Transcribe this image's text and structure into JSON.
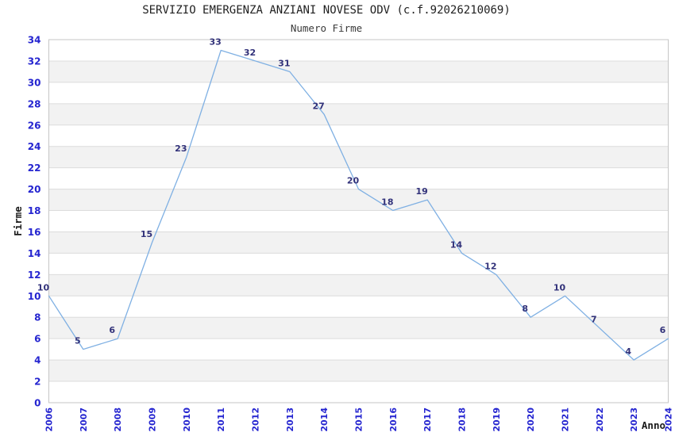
{
  "chart_data": {
    "type": "line",
    "title": "SERVIZIO EMERGENZA ANZIANI NOVESE ODV (c.f.92026210069)",
    "subtitle": "Numero Firme",
    "xlabel": "Anno",
    "ylabel": "Firme",
    "categories": [
      "2006",
      "2007",
      "2008",
      "2009",
      "2010",
      "2011",
      "2012",
      "2013",
      "2014",
      "2015",
      "2016",
      "2017",
      "2018",
      "2019",
      "2020",
      "2021",
      "2022",
      "2023",
      "2024"
    ],
    "series": [
      {
        "name": "Numero Firme",
        "values": [
          10,
          5,
          6,
          15,
          23,
          33,
          32,
          31,
          27,
          20,
          18,
          19,
          14,
          12,
          8,
          10,
          7,
          4,
          6
        ]
      }
    ],
    "ylim": [
      0,
      34
    ],
    "ytick_step": 2,
    "grid": true,
    "alternating_bands": true,
    "legend_position": "none",
    "data_labels": true,
    "colors": {
      "line": "#7fb0e3",
      "tick_label": "#2525d0",
      "data_label": "#32327a",
      "band_gray": "#f2f2f2",
      "gridline": "#dcdcdc",
      "plot_border": "#c6c6c6",
      "axis_label": "#1a1a1a",
      "background": "#ffffff"
    }
  }
}
